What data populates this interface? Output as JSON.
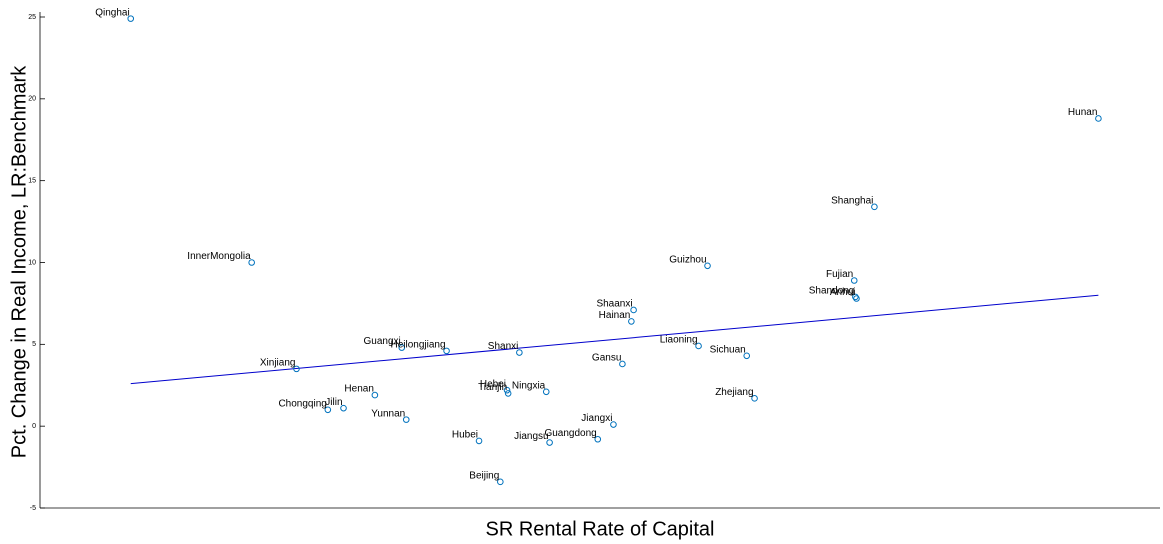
{
  "chart_data": {
    "type": "scatter",
    "xlabel": "SR Rental Rate of Capital",
    "ylabel": "Pct. Change in Real Income, LR:Benchmark",
    "labels": [
      "Qinghai",
      "Hunan",
      "Shanghai",
      "InnerMongolia",
      "Guizhou",
      "Fujian",
      "Shandong",
      "Anhui",
      "Shaanxi",
      "Hainan",
      "Liaoning",
      "Sichuan",
      "Guangxi",
      "Heilongjiang",
      "Shanxi",
      "Gansu",
      "Xinjiang",
      "Henan",
      "Hebei",
      "Tianjin",
      "Ningxia",
      "Zhejiang",
      "Chongqing",
      "Jilin",
      "Yunnan",
      "Jiangxi",
      "Hubei",
      "Guangdong",
      "Jiangsu",
      "Beijing"
    ],
    "x": [
      8.1,
      94.5,
      74.5,
      18.9,
      59.6,
      72.7,
      72.8,
      72.9,
      53.0,
      52.8,
      58.8,
      63.1,
      32.3,
      36.3,
      42.8,
      52.0,
      22.9,
      29.9,
      41.7,
      41.8,
      45.2,
      63.8,
      25.7,
      27.1,
      32.7,
      51.2,
      39.2,
      49.8,
      45.5,
      41.1
    ],
    "y": [
      24.9,
      18.8,
      13.4,
      10.0,
      9.8,
      8.9,
      7.9,
      7.8,
      7.1,
      6.4,
      4.9,
      4.3,
      4.8,
      4.6,
      4.5,
      3.8,
      3.5,
      1.9,
      2.2,
      2.0,
      2.1,
      1.7,
      1.0,
      1.1,
      0.4,
      0.1,
      -0.9,
      -0.8,
      -1.0,
      -3.4
    ],
    "color": "#0072bd",
    "fit_line": {
      "x": [
        8.1,
        94.5
      ],
      "y": [
        2.6,
        8.0
      ],
      "color": "#0000cc"
    },
    "xlim": [
      0,
      100
    ],
    "ylim": [
      -5,
      25
    ],
    "yticks": [
      -5,
      0,
      5,
      10,
      15,
      20,
      25
    ]
  }
}
